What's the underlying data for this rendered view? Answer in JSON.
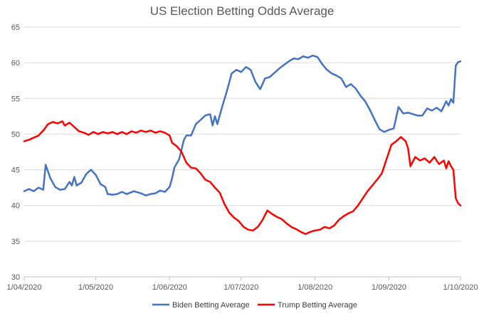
{
  "chart_data": {
    "type": "line",
    "title": "US Election Betting Odds Average",
    "xlabel": "",
    "ylabel": "",
    "ylim": [
      30,
      65
    ],
    "yticks": [
      30,
      35,
      40,
      45,
      50,
      55,
      60,
      65
    ],
    "xlim": [
      "2020-04-01",
      "2020-10-01"
    ],
    "xticks": [
      {
        "date": "2020-04-01",
        "label": "1/04/2020"
      },
      {
        "date": "2020-05-01",
        "label": "1/05/2020"
      },
      {
        "date": "2020-06-01",
        "label": "1/06/2020"
      },
      {
        "date": "2020-07-01",
        "label": "1/07/2020"
      },
      {
        "date": "2020-08-01",
        "label": "1/08/2020"
      },
      {
        "date": "2020-09-01",
        "label": "1/09/2020"
      },
      {
        "date": "2020-10-01",
        "label": "1/10/2020"
      }
    ],
    "grid": true,
    "legend": "bottom",
    "series": [
      {
        "name": "Biden Betting Average",
        "color": "#4472c4",
        "points": [
          [
            "2020-04-01",
            42.0
          ],
          [
            "2020-04-03",
            42.3
          ],
          [
            "2020-04-05",
            42.0
          ],
          [
            "2020-04-07",
            42.5
          ],
          [
            "2020-04-09",
            42.2
          ],
          [
            "2020-04-10",
            45.7
          ],
          [
            "2020-04-12",
            43.8
          ],
          [
            "2020-04-14",
            42.6
          ],
          [
            "2020-04-16",
            42.2
          ],
          [
            "2020-04-18",
            42.3
          ],
          [
            "2020-04-20",
            43.3
          ],
          [
            "2020-04-21",
            42.8
          ],
          [
            "2020-04-22",
            44.0
          ],
          [
            "2020-04-23",
            42.8
          ],
          [
            "2020-04-25",
            43.2
          ],
          [
            "2020-04-27",
            44.4
          ],
          [
            "2020-04-29",
            45.0
          ],
          [
            "2020-05-01",
            44.3
          ],
          [
            "2020-05-03",
            43.0
          ],
          [
            "2020-05-05",
            42.6
          ],
          [
            "2020-05-06",
            41.6
          ],
          [
            "2020-05-08",
            41.5
          ],
          [
            "2020-05-10",
            41.6
          ],
          [
            "2020-05-12",
            41.9
          ],
          [
            "2020-05-14",
            41.6
          ],
          [
            "2020-05-17",
            42.0
          ],
          [
            "2020-05-20",
            41.7
          ],
          [
            "2020-05-22",
            41.4
          ],
          [
            "2020-05-24",
            41.6
          ],
          [
            "2020-05-26",
            41.7
          ],
          [
            "2020-05-28",
            42.1
          ],
          [
            "2020-05-30",
            41.9
          ],
          [
            "2020-06-01",
            42.6
          ],
          [
            "2020-06-02",
            43.8
          ],
          [
            "2020-06-03",
            45.3
          ],
          [
            "2020-06-05",
            46.5
          ],
          [
            "2020-06-07",
            49.2
          ],
          [
            "2020-06-08",
            49.8
          ],
          [
            "2020-06-10",
            49.8
          ],
          [
            "2020-06-12",
            51.4
          ],
          [
            "2020-06-14",
            52.0
          ],
          [
            "2020-06-16",
            52.6
          ],
          [
            "2020-06-18",
            52.8
          ],
          [
            "2020-06-19",
            51.2
          ],
          [
            "2020-06-20",
            52.5
          ],
          [
            "2020-06-21",
            51.4
          ],
          [
            "2020-06-23",
            53.8
          ],
          [
            "2020-06-25",
            56.0
          ],
          [
            "2020-06-27",
            58.5
          ],
          [
            "2020-06-29",
            59.0
          ],
          [
            "2020-07-01",
            58.7
          ],
          [
            "2020-07-03",
            59.4
          ],
          [
            "2020-07-05",
            59.0
          ],
          [
            "2020-07-07",
            57.3
          ],
          [
            "2020-07-09",
            56.3
          ],
          [
            "2020-07-11",
            57.8
          ],
          [
            "2020-07-13",
            58.0
          ],
          [
            "2020-07-15",
            58.6
          ],
          [
            "2020-07-17",
            59.2
          ],
          [
            "2020-07-19",
            59.7
          ],
          [
            "2020-07-21",
            60.2
          ],
          [
            "2020-07-23",
            60.6
          ],
          [
            "2020-07-25",
            60.5
          ],
          [
            "2020-07-27",
            60.9
          ],
          [
            "2020-07-29",
            60.7
          ],
          [
            "2020-07-31",
            61.0
          ],
          [
            "2020-08-02",
            60.8
          ],
          [
            "2020-08-04",
            59.8
          ],
          [
            "2020-08-06",
            59.0
          ],
          [
            "2020-08-08",
            58.5
          ],
          [
            "2020-08-10",
            58.2
          ],
          [
            "2020-08-12",
            57.8
          ],
          [
            "2020-08-14",
            56.6
          ],
          [
            "2020-08-16",
            57.0
          ],
          [
            "2020-08-18",
            56.4
          ],
          [
            "2020-08-20",
            55.4
          ],
          [
            "2020-08-22",
            54.6
          ],
          [
            "2020-08-24",
            53.4
          ],
          [
            "2020-08-26",
            52.0
          ],
          [
            "2020-08-28",
            50.7
          ],
          [
            "2020-08-30",
            50.3
          ],
          [
            "2020-09-01",
            50.6
          ],
          [
            "2020-09-03",
            50.8
          ],
          [
            "2020-09-05",
            53.8
          ],
          [
            "2020-09-07",
            52.9
          ],
          [
            "2020-09-09",
            53.0
          ],
          [
            "2020-09-11",
            52.8
          ],
          [
            "2020-09-13",
            52.6
          ],
          [
            "2020-09-15",
            52.6
          ],
          [
            "2020-09-17",
            53.6
          ],
          [
            "2020-09-19",
            53.3
          ],
          [
            "2020-09-21",
            53.7
          ],
          [
            "2020-09-23",
            53.2
          ],
          [
            "2020-09-25",
            54.6
          ],
          [
            "2020-09-26",
            54.0
          ],
          [
            "2020-09-27",
            54.9
          ],
          [
            "2020-09-28",
            54.4
          ],
          [
            "2020-09-29",
            59.6
          ],
          [
            "2020-09-30",
            60.1
          ],
          [
            "2020-10-01",
            60.2
          ]
        ]
      },
      {
        "name": "Trump Betting Average",
        "color": "#ff0000",
        "points": [
          [
            "2020-04-01",
            49.0
          ],
          [
            "2020-04-03",
            49.2
          ],
          [
            "2020-04-05",
            49.5
          ],
          [
            "2020-04-07",
            49.8
          ],
          [
            "2020-04-09",
            50.5
          ],
          [
            "2020-04-11",
            51.4
          ],
          [
            "2020-04-13",
            51.7
          ],
          [
            "2020-04-15",
            51.5
          ],
          [
            "2020-04-17",
            51.8
          ],
          [
            "2020-04-18",
            51.2
          ],
          [
            "2020-04-20",
            51.6
          ],
          [
            "2020-04-22",
            51.0
          ],
          [
            "2020-04-24",
            50.4
          ],
          [
            "2020-04-26",
            50.2
          ],
          [
            "2020-04-28",
            49.9
          ],
          [
            "2020-04-30",
            50.3
          ],
          [
            "2020-05-02",
            50.0
          ],
          [
            "2020-05-04",
            50.3
          ],
          [
            "2020-05-06",
            50.1
          ],
          [
            "2020-05-08",
            50.3
          ],
          [
            "2020-05-10",
            50.0
          ],
          [
            "2020-05-12",
            50.3
          ],
          [
            "2020-05-14",
            50.0
          ],
          [
            "2020-05-16",
            50.4
          ],
          [
            "2020-05-18",
            50.2
          ],
          [
            "2020-05-20",
            50.5
          ],
          [
            "2020-05-22",
            50.3
          ],
          [
            "2020-05-24",
            50.5
          ],
          [
            "2020-05-26",
            50.2
          ],
          [
            "2020-05-28",
            50.4
          ],
          [
            "2020-05-30",
            50.2
          ],
          [
            "2020-06-01",
            49.8
          ],
          [
            "2020-06-02",
            48.8
          ],
          [
            "2020-06-04",
            48.3
          ],
          [
            "2020-06-06",
            47.5
          ],
          [
            "2020-06-08",
            46.0
          ],
          [
            "2020-06-10",
            45.3
          ],
          [
            "2020-06-12",
            45.2
          ],
          [
            "2020-06-14",
            44.5
          ],
          [
            "2020-06-16",
            43.6
          ],
          [
            "2020-06-18",
            43.3
          ],
          [
            "2020-06-20",
            42.5
          ],
          [
            "2020-06-22",
            41.8
          ],
          [
            "2020-06-24",
            40.2
          ],
          [
            "2020-06-26",
            39.0
          ],
          [
            "2020-06-28",
            38.3
          ],
          [
            "2020-06-30",
            37.8
          ],
          [
            "2020-07-02",
            37.0
          ],
          [
            "2020-07-04",
            36.6
          ],
          [
            "2020-07-06",
            36.5
          ],
          [
            "2020-07-08",
            37.0
          ],
          [
            "2020-07-10",
            38.0
          ],
          [
            "2020-07-12",
            39.3
          ],
          [
            "2020-07-14",
            38.8
          ],
          [
            "2020-07-16",
            38.4
          ],
          [
            "2020-07-18",
            38.1
          ],
          [
            "2020-07-20",
            37.5
          ],
          [
            "2020-07-22",
            37.0
          ],
          [
            "2020-07-24",
            36.7
          ],
          [
            "2020-07-26",
            36.3
          ],
          [
            "2020-07-28",
            36.0
          ],
          [
            "2020-07-30",
            36.3
          ],
          [
            "2020-08-01",
            36.5
          ],
          [
            "2020-08-03",
            36.6
          ],
          [
            "2020-08-05",
            37.0
          ],
          [
            "2020-08-07",
            36.8
          ],
          [
            "2020-08-09",
            37.2
          ],
          [
            "2020-08-11",
            38.0
          ],
          [
            "2020-08-13",
            38.5
          ],
          [
            "2020-08-15",
            38.9
          ],
          [
            "2020-08-17",
            39.2
          ],
          [
            "2020-08-19",
            40.0
          ],
          [
            "2020-08-21",
            41.0
          ],
          [
            "2020-08-23",
            42.0
          ],
          [
            "2020-08-25",
            42.8
          ],
          [
            "2020-08-27",
            43.6
          ],
          [
            "2020-08-29",
            44.5
          ],
          [
            "2020-08-31",
            46.5
          ],
          [
            "2020-09-02",
            48.5
          ],
          [
            "2020-09-04",
            49.0
          ],
          [
            "2020-09-06",
            49.6
          ],
          [
            "2020-09-08",
            49.0
          ],
          [
            "2020-09-09",
            48.0
          ],
          [
            "2020-09-10",
            45.5
          ],
          [
            "2020-09-12",
            46.8
          ],
          [
            "2020-09-14",
            46.3
          ],
          [
            "2020-09-16",
            46.6
          ],
          [
            "2020-09-18",
            46.0
          ],
          [
            "2020-09-20",
            46.8
          ],
          [
            "2020-09-22",
            45.8
          ],
          [
            "2020-09-24",
            46.3
          ],
          [
            "2020-09-25",
            45.2
          ],
          [
            "2020-09-26",
            46.2
          ],
          [
            "2020-09-27",
            45.5
          ],
          [
            "2020-09-28",
            45.0
          ],
          [
            "2020-09-29",
            41.0
          ],
          [
            "2020-09-30",
            40.3
          ],
          [
            "2020-10-01",
            40.0
          ]
        ]
      }
    ]
  }
}
